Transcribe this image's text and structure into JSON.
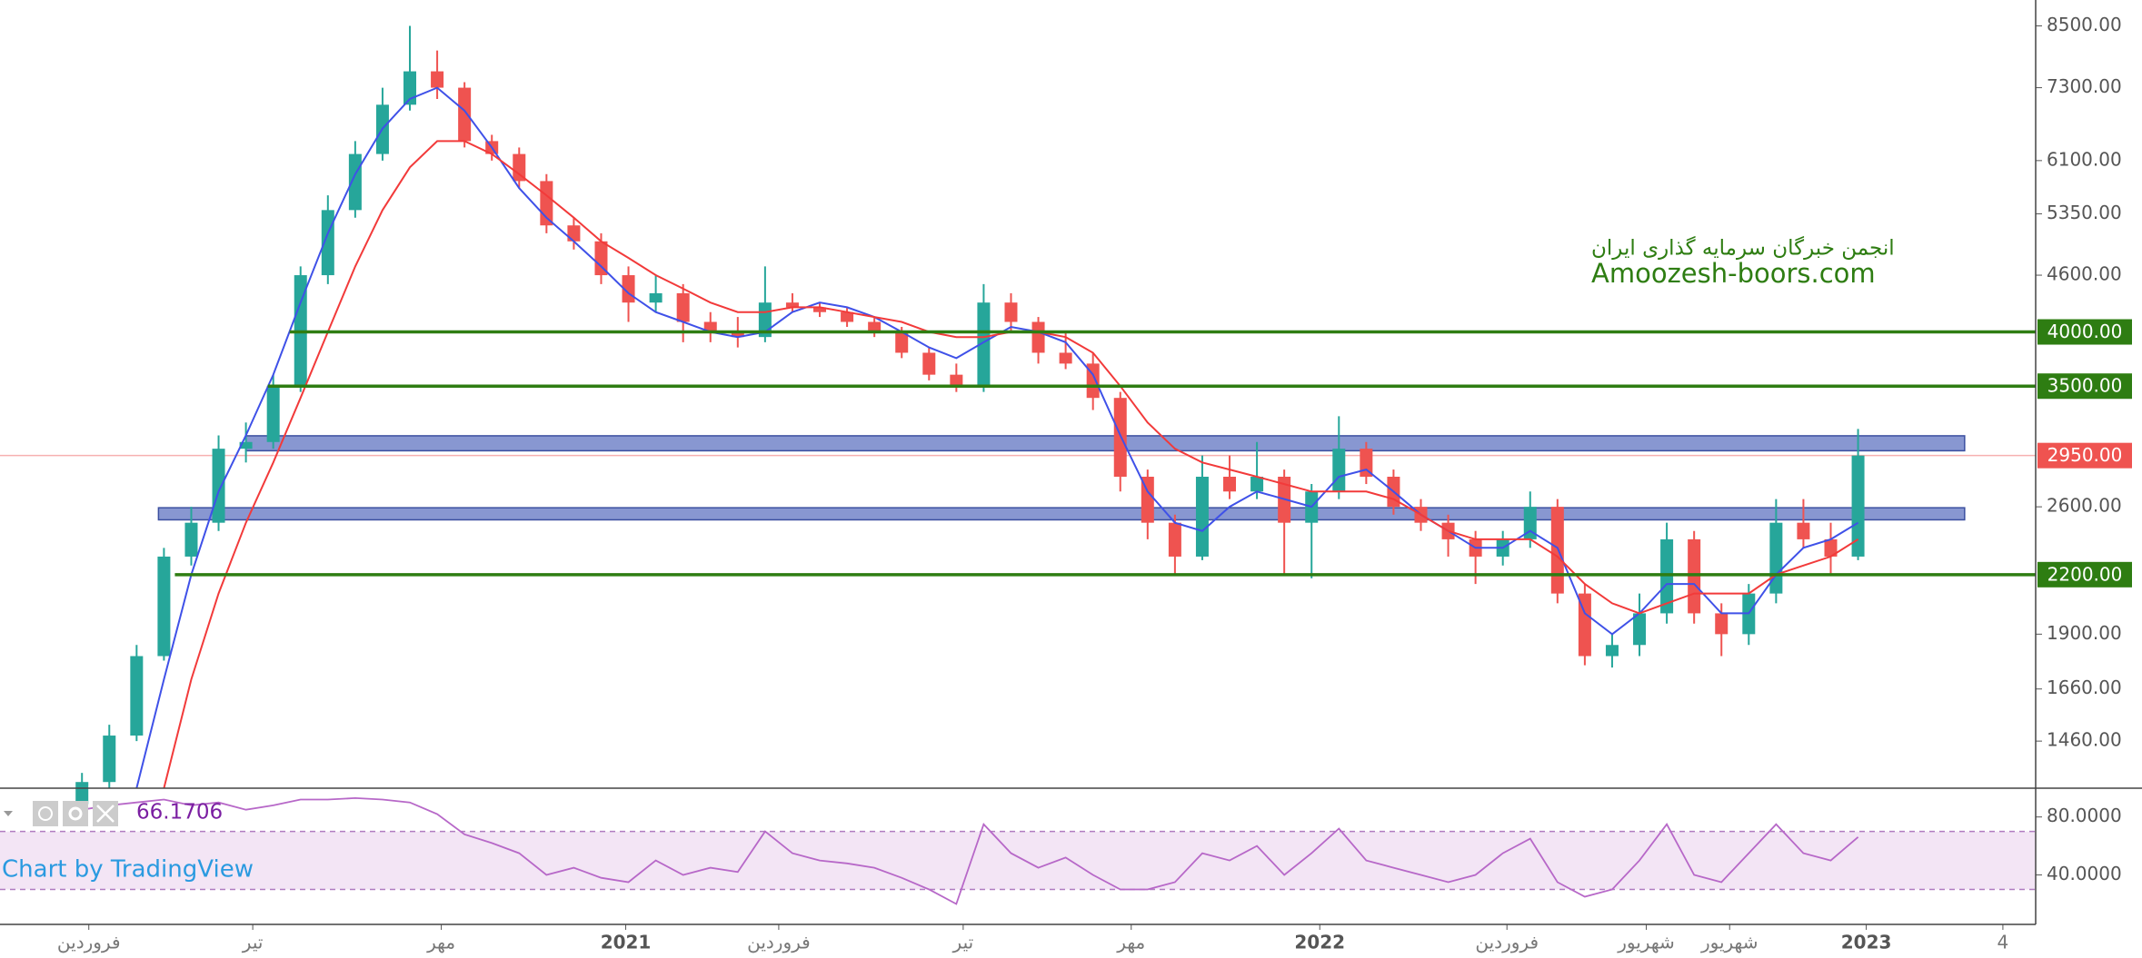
{
  "chart_data": {
    "type": "candlestick",
    "x": [
      3,
      4,
      5,
      6,
      7,
      8,
      9,
      10,
      11,
      12,
      13,
      14,
      15,
      16,
      17,
      18,
      19,
      20,
      21,
      22,
      23,
      24,
      25,
      26,
      27,
      28,
      29,
      30,
      31,
      32,
      33,
      34,
      35,
      36,
      37,
      38,
      39,
      40,
      41,
      42,
      43,
      44,
      45,
      46,
      47,
      48,
      49,
      50,
      51,
      52,
      53,
      54,
      55,
      56,
      57,
      58,
      59,
      60,
      61,
      62,
      63,
      64,
      65,
      66,
      67,
      68
    ],
    "open": [
      1250,
      1320,
      1480,
      1800,
      2300,
      2500,
      3000,
      3050,
      3500,
      4600,
      5400,
      6200,
      7000,
      7600,
      7300,
      6400,
      6200,
      5800,
      5200,
      5000,
      4600,
      4300,
      4400,
      4100,
      4000,
      3950,
      4300,
      4250,
      4200,
      4100,
      4000,
      3800,
      3600,
      3500,
      4300,
      4100,
      3800,
      3700,
      3400,
      2800,
      2500,
      2300,
      2800,
      2700,
      2800,
      2500,
      2700,
      3000,
      2800,
      2600,
      2500,
      2400,
      2300,
      2400,
      2600,
      2100,
      1800,
      1850,
      2000,
      2400,
      2000,
      1900,
      2100,
      2500,
      2400,
      2300
    ],
    "high": [
      1350,
      1520,
      1850,
      2350,
      2600,
      3100,
      3200,
      3600,
      4700,
      5600,
      6400,
      7300,
      8500,
      8000,
      7400,
      6500,
      6300,
      5900,
      5300,
      5100,
      4700,
      4600,
      4500,
      4200,
      4150,
      4700,
      4400,
      4300,
      4250,
      4150,
      4050,
      3850,
      3700,
      4500,
      4400,
      4150,
      4000,
      3800,
      3450,
      2850,
      2550,
      2950,
      2950,
      3050,
      2850,
      2750,
      3250,
      3050,
      2850,
      2650,
      2550,
      2450,
      2450,
      2700,
      2650,
      2150,
      1900,
      2100,
      2500,
      2450,
      2050,
      2150,
      2650,
      2650,
      2500,
      3150
    ],
    "low": [
      1230,
      1300,
      1460,
      1780,
      2250,
      2450,
      2900,
      3000,
      3450,
      4500,
      5300,
      6100,
      6900,
      7100,
      6300,
      6100,
      5700,
      5100,
      4900,
      4500,
      4100,
      4200,
      3900,
      3900,
      3850,
      3900,
      4200,
      4150,
      4050,
      3950,
      3750,
      3550,
      3450,
      3450,
      4000,
      3700,
      3650,
      3300,
      2700,
      2400,
      2200,
      2280,
      2650,
      2650,
      2200,
      2180,
      2650,
      2750,
      2550,
      2450,
      2300,
      2150,
      2250,
      2350,
      2050,
      1760,
      1750,
      1800,
      1950,
      1950,
      1800,
      1850,
      2050,
      2350,
      2200,
      2280
    ],
    "close": [
      1320,
      1480,
      1800,
      2300,
      2500,
      3000,
      3050,
      3500,
      4600,
      5400,
      6200,
      7000,
      7600,
      7300,
      6400,
      6200,
      5800,
      5200,
      5000,
      4600,
      4300,
      4400,
      4100,
      4000,
      3950,
      4300,
      4250,
      4200,
      4100,
      4000,
      3800,
      3600,
      3500,
      4300,
      4100,
      3800,
      3700,
      3400,
      2800,
      2500,
      2300,
      2800,
      2700,
      2800,
      2500,
      2700,
      3000,
      2800,
      2600,
      2500,
      2400,
      2300,
      2400,
      2600,
      2100,
      1800,
      1850,
      2000,
      2400,
      2000,
      1900,
      2100,
      2500,
      2400,
      2300,
      2950
    ],
    "up_color": "#26a69a",
    "down_color": "#ef5350",
    "series": [
      {
        "color": "#3f51e8",
        "values": [
          null,
          null,
          1300,
          1700,
          2200,
          2700,
          3100,
          3600,
          4300,
          5100,
          5900,
          6600,
          7100,
          7300,
          6900,
          6300,
          5700,
          5300,
          5000,
          4700,
          4400,
          4200,
          4100,
          4000,
          3950,
          4000,
          4200,
          4300,
          4250,
          4150,
          4000,
          3850,
          3750,
          3900,
          4050,
          4000,
          3900,
          3600,
          3100,
          2700,
          2500,
          2450,
          2600,
          2700,
          2650,
          2600,
          2800,
          2850,
          2700,
          2550,
          2450,
          2350,
          2350,
          2450,
          2350,
          2000,
          1900,
          2000,
          2150,
          2150,
          2000,
          2000,
          2200,
          2350,
          2400,
          2500
        ]
      },
      {
        "color": "#f23a3a",
        "values": [
          null,
          null,
          null,
          1300,
          1700,
          2100,
          2500,
          2900,
          3400,
          4000,
          4700,
          5400,
          6000,
          6400,
          6400,
          6200,
          5900,
          5600,
          5300,
          5000,
          4800,
          4600,
          4450,
          4300,
          4200,
          4200,
          4250,
          4250,
          4200,
          4150,
          4100,
          4000,
          3950,
          3950,
          4000,
          4000,
          3950,
          3800,
          3500,
          3200,
          3000,
          2900,
          2850,
          2800,
          2750,
          2700,
          2700,
          2700,
          2650,
          2550,
          2450,
          2400,
          2400,
          2400,
          2300,
          2150,
          2050,
          2000,
          2050,
          2100,
          2100,
          2100,
          2200,
          2250,
          2300,
          2400
        ]
      }
    ],
    "xlim": [
      0,
      74.5
    ],
    "xticks": [
      {
        "value": 3.25,
        "label": "فروردین"
      },
      {
        "value": 9.25,
        "label": "تیر"
      },
      {
        "value": 16.15,
        "label": "مهر"
      },
      {
        "value": 22.9,
        "label": "2021"
      },
      {
        "value": 28.5,
        "label": "فروردین"
      },
      {
        "value": 35.25,
        "label": "تیر"
      },
      {
        "value": 41.4,
        "label": "مهر"
      },
      {
        "value": 48.3,
        "label": "2022"
      },
      {
        "value": 55.15,
        "label": "فروردین"
      },
      {
        "value": 60.25,
        "label": "شهریور"
      },
      {
        "value": 63.3,
        "label": "شهریور"
      },
      {
        "value": 68.3,
        "label": "2023"
      },
      {
        "value": 73.3,
        "label": "4"
      }
    ],
    "ylim": [
      1303,
      9060
    ],
    "log_scale": true,
    "yticks": [
      {
        "value": 8500,
        "label": "8500.00"
      },
      {
        "value": 7300,
        "label": "7300.00"
      },
      {
        "value": 6100,
        "label": "6100.00"
      },
      {
        "value": 5350,
        "label": "5350.00"
      },
      {
        "value": 4600,
        "label": "4600.00"
      },
      {
        "value": 2600,
        "label": "2600.00"
      },
      {
        "value": 1900,
        "label": "1900.00"
      },
      {
        "value": 1660,
        "label": "1660.00"
      },
      {
        "value": 1460,
        "label": "1460.00"
      }
    ],
    "levels": [
      {
        "value": 4000,
        "label": "4000.00",
        "color": "#2e7d12",
        "xrange": [
          10.6,
          74.5
        ]
      },
      {
        "value": 3500,
        "label": "3500.00",
        "color": "#2e7d12",
        "xrange": [
          9.8,
          74.5
        ]
      },
      {
        "value": 2200,
        "label": "2200.00",
        "color": "#2e7d12",
        "xrange": [
          6.4,
          74.5
        ]
      }
    ],
    "zones": [
      {
        "range": [
          2985,
          3097
        ],
        "xrange": [
          9,
          71.9
        ],
        "color": "#6a7dc6"
      },
      {
        "range": [
          2518,
          2594
        ],
        "xrange": [
          5.8,
          71.9
        ],
        "color": "#6a7dc6"
      }
    ],
    "last_price": {
      "value": 2950,
      "label": "2950.00",
      "color": "#ef5350"
    },
    "annotations": [
      "انجمن خبرگان سرمایه گذاری ایران",
      "Amoozesh-boors.com"
    ],
    "watermark": "Chart by TradingView",
    "rsi": {
      "color": "#b768c8",
      "values": [
        85,
        88,
        90,
        92,
        88,
        90,
        85,
        88,
        92,
        92,
        93,
        92,
        90,
        82,
        68,
        62,
        55,
        40,
        45,
        38,
        35,
        50,
        40,
        45,
        42,
        70,
        55,
        50,
        48,
        45,
        38,
        30,
        20,
        75,
        55,
        45,
        52,
        40,
        30,
        30,
        35,
        55,
        50,
        60,
        40,
        55,
        72,
        50,
        45,
        40,
        35,
        40,
        55,
        65,
        35,
        25,
        30,
        50,
        75,
        40,
        35,
        55,
        75,
        55,
        50,
        66.1706
      ],
      "ylim": [
        6.5,
        98.6
      ],
      "yticks": [
        {
          "value": 80,
          "label": "80.0000"
        },
        {
          "value": 40,
          "label": "40.0000"
        }
      ],
      "band": [
        30,
        70
      ]
    }
  }
}
